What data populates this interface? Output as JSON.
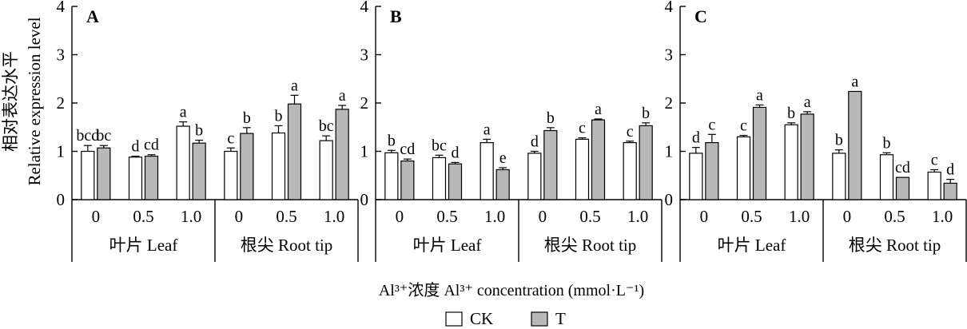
{
  "chart_data": {
    "type": "bar",
    "ylabel_cn": "相对表达水平",
    "ylabel_en": "Relative expression level",
    "xlabel": "Al³⁺浓度 Al³⁺ concentration (mmol·L⁻¹)",
    "ylim": [
      0,
      4
    ],
    "yticks": [
      "0",
      "1",
      "2",
      "3",
      "4"
    ],
    "x_tick_labels": [
      "0",
      "0.5",
      "1.0",
      "0",
      "0.5",
      "1.0"
    ],
    "groups": [
      "叶片 Leaf",
      "根尖 Root tip"
    ],
    "legend": [
      {
        "name": "CK",
        "color": "#ffffff"
      },
      {
        "name": "T",
        "color": "#b8b8b8"
      }
    ],
    "series_colors": {
      "CK": "#ffffff",
      "T": "#b8b8b8"
    },
    "panels": [
      {
        "label": "A",
        "ck": [
          1.0,
          0.88,
          1.52,
          1.0,
          1.38,
          1.22
        ],
        "ck_err": [
          0.12,
          0.02,
          0.09,
          0.07,
          0.15,
          0.1
        ],
        "ck_sig": [
          "bcd",
          "d",
          "a",
          "c",
          "b",
          "bc"
        ],
        "t": [
          1.07,
          0.9,
          1.17,
          1.37,
          1.98,
          1.87
        ],
        "t_err": [
          0.05,
          0.03,
          0.06,
          0.12,
          0.18,
          0.08
        ],
        "t_sig": [
          "bc",
          "cd",
          "b",
          "b",
          "a",
          "a"
        ]
      },
      {
        "label": "B",
        "ck": [
          0.97,
          0.87,
          1.18,
          0.96,
          1.25,
          1.18
        ],
        "ck_err": [
          0.05,
          0.05,
          0.07,
          0.04,
          0.03,
          0.03
        ],
        "ck_sig": [
          "b",
          "bc",
          "a",
          "d",
          "c",
          "c"
        ],
        "t": [
          0.8,
          0.74,
          0.62,
          1.43,
          1.65,
          1.53
        ],
        "t_err": [
          0.04,
          0.03,
          0.04,
          0.06,
          0.02,
          0.06
        ],
        "t_sig": [
          "cd",
          "d",
          "e",
          "b",
          "a",
          "b"
        ]
      },
      {
        "label": "C",
        "ck": [
          0.96,
          1.3,
          1.55,
          0.96,
          0.93,
          0.57
        ],
        "ck_err": [
          0.12,
          0.03,
          0.04,
          0.07,
          0.04,
          0.05
        ],
        "ck_sig": [
          "d",
          "c",
          "b",
          "b",
          "b",
          "c"
        ],
        "t": [
          1.18,
          1.91,
          1.77,
          2.24,
          0.46,
          0.34
        ],
        "t_err": [
          0.17,
          0.05,
          0.05,
          0.0,
          0.0,
          0.08
        ],
        "t_sig": [
          "c",
          "a",
          "a",
          "a",
          "cd",
          "d"
        ]
      }
    ]
  }
}
